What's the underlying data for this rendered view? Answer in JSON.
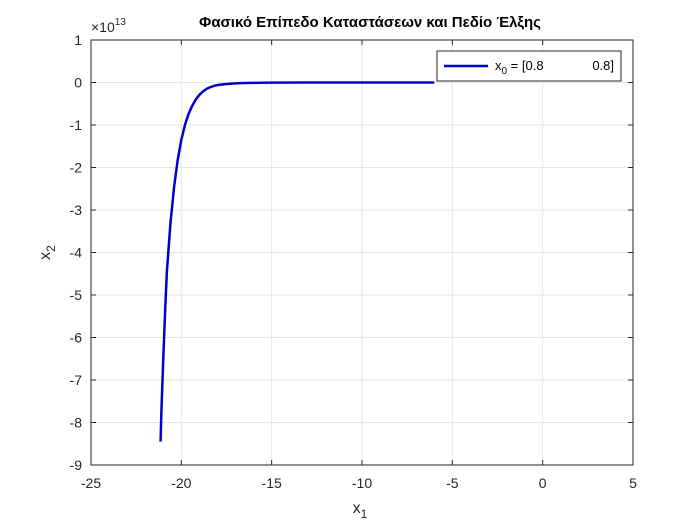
{
  "chart_data": {
    "type": "line",
    "title": "Φασικό Επίπεδο Καταστάσεων και Πεδίο Έλξης",
    "xlabel": {
      "base": "x",
      "sub": "1"
    },
    "ylabel": {
      "base": "x",
      "sub": "2"
    },
    "xlim": [
      -25,
      5
    ],
    "ylim": [
      -9,
      1
    ],
    "y_exponent": {
      "base": "×10",
      "exp": "13"
    },
    "xticks": [
      -25,
      -20,
      -15,
      -10,
      -5,
      0,
      5
    ],
    "yticks": [
      -9,
      -8,
      -7,
      -6,
      -5,
      -4,
      -3,
      -2,
      -1,
      0,
      1
    ],
    "grid": true,
    "legend_position": "top-right",
    "colors": {
      "series": "#0000cc",
      "grid": "#e6e6e6",
      "axis": "#262626"
    },
    "series": [
      {
        "name": {
          "base": "x",
          "sub": "0",
          "rest": " = [0.8",
          "end": "0.8]"
        },
        "x": [
          -21.15,
          -21.1,
          -21.0,
          -20.9,
          -20.8,
          -20.6,
          -20.4,
          -20.2,
          -20.0,
          -19.8,
          -19.6,
          -19.4,
          -19.2,
          -19.0,
          -18.8,
          -18.6,
          -18.4,
          -18.2,
          -18.0,
          -17.5,
          -17.0,
          -16.5,
          -16.0,
          -15.0,
          -13.0,
          -11.0,
          -9.0,
          -6.0
        ],
        "y": [
          -8.45,
          -7.7,
          -6.5,
          -5.4,
          -4.45,
          -3.3,
          -2.45,
          -1.82,
          -1.35,
          -1.0,
          -0.74,
          -0.55,
          -0.4,
          -0.29,
          -0.21,
          -0.15,
          -0.11,
          -0.08,
          -0.06,
          -0.035,
          -0.02,
          -0.012,
          -0.008,
          -0.004,
          -0.001,
          0,
          0,
          0
        ]
      }
    ]
  }
}
